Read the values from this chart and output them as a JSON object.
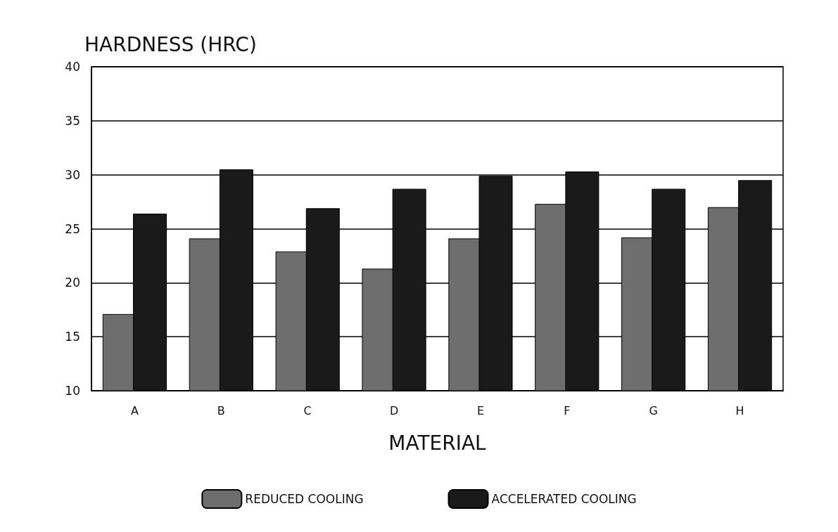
{
  "chart_data": {
    "type": "bar",
    "ylabel": "HARDNESS (HRC)",
    "xlabel": "MATERIAL",
    "categories": [
      "A",
      "B",
      "C",
      "D",
      "E",
      "F",
      "G",
      "H"
    ],
    "series": [
      {
        "name": "REDUCED COOLING",
        "color": "#6e6e6e",
        "values": [
          17.1,
          24.1,
          22.9,
          21.3,
          24.1,
          27.3,
          24.2,
          27.0
        ]
      },
      {
        "name": "ACCELERATED COOLING",
        "color": "#1a1a1a",
        "values": [
          26.4,
          30.5,
          26.9,
          28.7,
          29.9,
          30.3,
          28.7,
          29.5
        ]
      }
    ],
    "ylim": [
      10,
      40
    ],
    "yticks": [
      10,
      15,
      20,
      25,
      30,
      35,
      40
    ],
    "grid": "y",
    "legend": "bottom"
  }
}
